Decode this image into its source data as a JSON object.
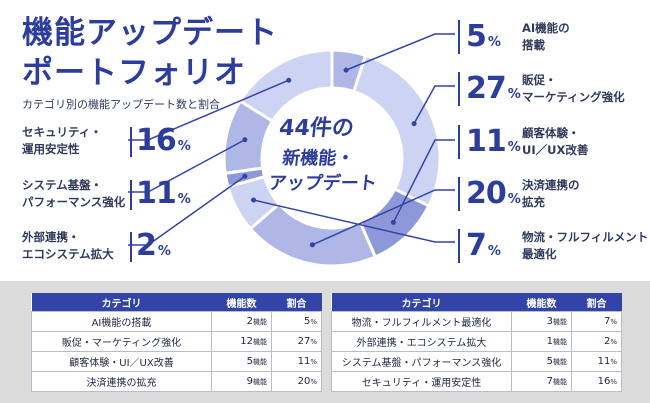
{
  "title": {
    "line1": "機能アップデート",
    "line2": "ポートフォリオ"
  },
  "subtitle": "カテゴリ別の機能アップデート数と割合",
  "center": {
    "line1": "44件の",
    "line2": "新機能・",
    "line3": "アップデート"
  },
  "chart_data": {
    "type": "pie",
    "title": "機能アップデート ポートフォリオ",
    "total": 44,
    "unit": "件",
    "categories": [
      "AI機能の搭載",
      "販促・マーケティング強化",
      "顧客体験・UI/UX改善",
      "決済連携の拡充",
      "物流・フルフィルメント最適化",
      "外部連携・エコシステム拡大",
      "システム基盤・パフォーマンス強化",
      "セキュリティ・運用安定性"
    ],
    "values": [
      2,
      12,
      5,
      9,
      3,
      1,
      5,
      7
    ],
    "percentages": [
      5,
      27,
      11,
      20,
      7,
      2,
      11,
      16
    ]
  },
  "callouts": {
    "ai": {
      "l1": "AI機能の",
      "l2": "搭載",
      "pct": "5",
      "unit": "%"
    },
    "promo": {
      "l1": "販促・",
      "l2": "マーケティング強化",
      "pct": "27",
      "unit": "%"
    },
    "cx": {
      "l1": "顧客体験・",
      "l2": "UI／UX改善",
      "pct": "11",
      "unit": "%"
    },
    "pay": {
      "l1": "決済連携の",
      "l2": "拡充",
      "pct": "20",
      "unit": "%"
    },
    "logi": {
      "l1": "物流・フルフィルメント",
      "l2": "最適化",
      "pct": "7",
      "unit": "%"
    },
    "sec": {
      "l1": "セキュリティ・",
      "l2": "運用安定性",
      "pct": "16",
      "unit": "%"
    },
    "sys": {
      "l1": "システム基盤・",
      "l2": "パフォーマンス強化",
      "pct": "11",
      "unit": "%"
    },
    "ext": {
      "l1": "外部連携・",
      "l2": "エコシステム拡大",
      "pct": "2",
      "unit": "%"
    }
  },
  "table": {
    "headers": {
      "category": "カテゴリ",
      "count": "機能数",
      "ratio": "割合"
    },
    "count_unit": "機能",
    "pct_unit": "%",
    "left": [
      {
        "name": "AI機能の搭載",
        "count": "2",
        "pct": "5"
      },
      {
        "name": "販促・マーケティング強化",
        "count": "12",
        "pct": "27"
      },
      {
        "name": "顧客体験・UI／UX改善",
        "count": "5",
        "pct": "11"
      },
      {
        "name": "決済連携の拡充",
        "count": "9",
        "pct": "20"
      }
    ],
    "right": [
      {
        "name": "物流・フルフィルメント最適化",
        "count": "3",
        "pct": "7"
      },
      {
        "name": "外部連携・エコシステム拡大",
        "count": "1",
        "pct": "2"
      },
      {
        "name": "システム基盤・パフォーマンス強化",
        "count": "5",
        "pct": "11"
      },
      {
        "name": "セキュリティ・運用安定性",
        "count": "7",
        "pct": "16"
      }
    ]
  },
  "colors": {
    "accent": "#2c3d9b",
    "slice_dark": "#8d98d9",
    "slice_mid": "#aeb7e6",
    "slice_light": "#cdd3f2",
    "line": "#3344a8",
    "table_header": "#3344a8",
    "panel": "#dcdcdc"
  }
}
